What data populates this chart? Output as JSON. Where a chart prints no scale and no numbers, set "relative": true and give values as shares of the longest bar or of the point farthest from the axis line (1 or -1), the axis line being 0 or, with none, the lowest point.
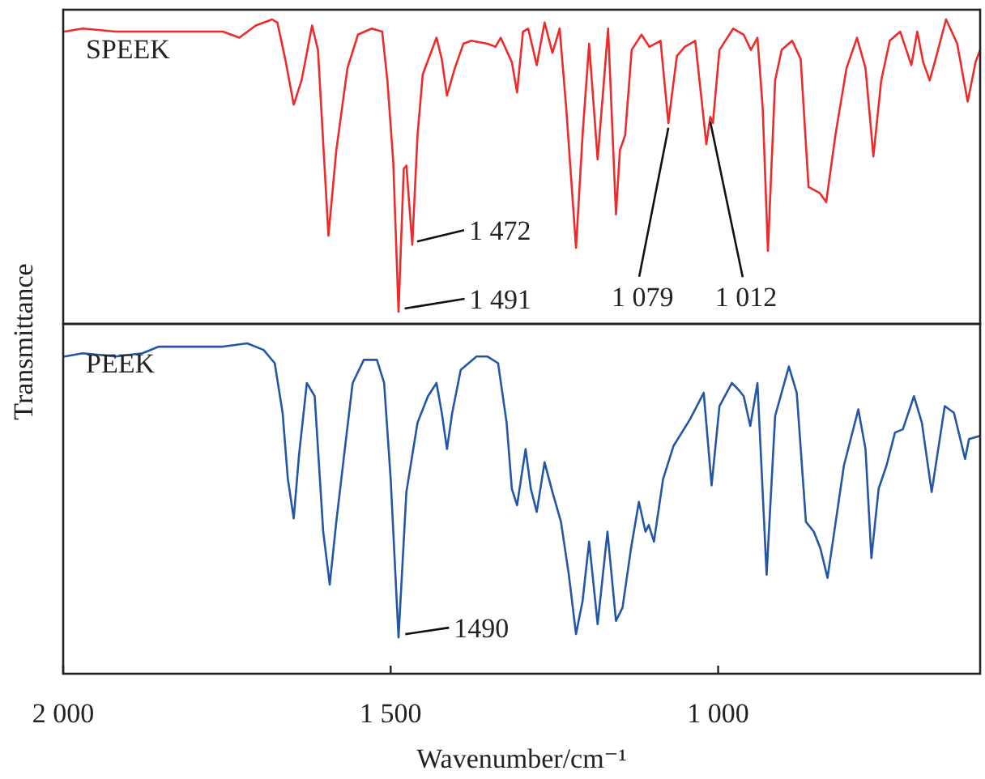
{
  "chart_data": [
    {
      "type": "line",
      "title": "SPEEK",
      "ylabel": "Transmittance",
      "relative": true,
      "xlim": [
        2000,
        600
      ],
      "tick_labels": false,
      "series": [
        {
          "color": "#ee2a2a",
          "x": [
            1998,
            1970,
            1920,
            1838,
            1756,
            1731,
            1706,
            1681,
            1673,
            1661,
            1648,
            1636,
            1620,
            1611,
            1595,
            1583,
            1566,
            1550,
            1529,
            1513,
            1505,
            1496,
            1488,
            1480,
            1476,
            1467,
            1459,
            1451,
            1430,
            1422,
            1414,
            1402,
            1389,
            1377,
            1352,
            1340,
            1332,
            1315,
            1307,
            1298,
            1290,
            1277,
            1265,
            1253,
            1242,
            1232,
            1217,
            1207,
            1197,
            1184,
            1168,
            1156,
            1150,
            1142,
            1132,
            1117,
            1105,
            1088,
            1076,
            1063,
            1051,
            1035,
            1026,
            1018,
            1012,
            1008,
            998,
            977,
            961,
            950,
            940,
            932,
            924,
            913,
            903,
            887,
            874,
            862,
            845,
            835,
            821,
            804,
            788,
            775,
            763,
            751,
            738,
            722,
            705,
            696,
            687,
            677,
            668,
            652,
            635,
            619,
            607,
            600
          ],
          "values": [
            0.96,
            0.97,
            0.96,
            0.96,
            0.96,
            0.94,
            0.98,
            1.0,
            0.99,
            0.87,
            0.72,
            0.8,
            0.98,
            0.9,
            0.29,
            0.57,
            0.84,
            0.95,
            0.97,
            0.96,
            0.8,
            0.53,
            0.04,
            0.51,
            0.52,
            0.26,
            0.62,
            0.82,
            0.94,
            0.87,
            0.75,
            0.84,
            0.92,
            0.93,
            0.92,
            0.91,
            0.94,
            0.86,
            0.76,
            0.96,
            0.97,
            0.85,
            0.99,
            0.89,
            0.97,
            0.71,
            0.25,
            0.62,
            0.92,
            0.54,
            0.97,
            0.36,
            0.57,
            0.62,
            0.9,
            0.95,
            0.91,
            0.93,
            0.66,
            0.88,
            0.91,
            0.93,
            0.75,
            0.59,
            0.68,
            0.66,
            0.9,
            0.97,
            0.95,
            0.9,
            0.94,
            0.71,
            0.24,
            0.8,
            0.9,
            0.93,
            0.87,
            0.45,
            0.43,
            0.4,
            0.62,
            0.84,
            0.94,
            0.84,
            0.55,
            0.8,
            0.93,
            0.96,
            0.85,
            0.96,
            0.86,
            0.8,
            0.87,
            1.0,
            0.92,
            0.73,
            0.86,
            0.9
          ]
        }
      ],
      "annotations": [
        {
          "text": "1 472",
          "x": 1472,
          "y": 0.26
        },
        {
          "text": "1 491",
          "x": 1491,
          "y": 0.04
        },
        {
          "text": "1 079",
          "x": 1076,
          "y": 0.66
        },
        {
          "text": "1 012",
          "x": 1012,
          "y": 0.68
        }
      ]
    },
    {
      "type": "line",
      "title": "PEEK",
      "xlabel": "Wavenumber/cm⁻¹",
      "relative": true,
      "xlim": [
        2000,
        600
      ],
      "tick_labels": "x",
      "xticks": [
        {
          "value": 2000,
          "label": "2 000"
        },
        {
          "value": 1500,
          "label": "1 500"
        },
        {
          "value": 1000,
          "label": "1 000"
        }
      ],
      "series": [
        {
          "color": "#2456a8",
          "x": [
            1998,
            1970,
            1920,
            1879,
            1854,
            1797,
            1756,
            1719,
            1694,
            1677,
            1665,
            1657,
            1648,
            1640,
            1628,
            1616,
            1603,
            1593,
            1583,
            1570,
            1558,
            1541,
            1521,
            1510,
            1500,
            1488,
            1476,
            1459,
            1443,
            1430,
            1422,
            1414,
            1406,
            1393,
            1369,
            1352,
            1336,
            1323,
            1315,
            1307,
            1294,
            1286,
            1277,
            1265,
            1253,
            1240,
            1228,
            1217,
            1207,
            1197,
            1184,
            1169,
            1156,
            1146,
            1133,
            1121,
            1111,
            1106,
            1098,
            1084,
            1068,
            1043,
            1022,
            1010,
            998,
            979,
            969,
            961,
            951,
            940,
            926,
            913,
            892,
            880,
            866,
            854,
            844,
            833,
            808,
            786,
            775,
            766,
            755,
            743,
            730,
            718,
            701,
            689,
            674,
            654,
            640,
            623,
            617,
            600
          ],
          "values": [
            0.96,
            0.97,
            0.96,
            0.97,
            0.99,
            0.99,
            0.99,
            1.0,
            0.98,
            0.94,
            0.79,
            0.59,
            0.47,
            0.66,
            0.88,
            0.84,
            0.43,
            0.27,
            0.46,
            0.68,
            0.88,
            0.95,
            0.95,
            0.88,
            0.59,
            0.11,
            0.55,
            0.76,
            0.84,
            0.88,
            0.79,
            0.68,
            0.79,
            0.92,
            0.96,
            0.96,
            0.94,
            0.76,
            0.56,
            0.51,
            0.68,
            0.56,
            0.49,
            0.64,
            0.55,
            0.46,
            0.3,
            0.12,
            0.22,
            0.4,
            0.15,
            0.43,
            0.16,
            0.2,
            0.38,
            0.52,
            0.43,
            0.45,
            0.4,
            0.59,
            0.69,
            0.77,
            0.85,
            0.57,
            0.81,
            0.88,
            0.86,
            0.84,
            0.75,
            0.88,
            0.3,
            0.78,
            0.93,
            0.85,
            0.46,
            0.43,
            0.38,
            0.29,
            0.63,
            0.8,
            0.68,
            0.35,
            0.56,
            0.63,
            0.73,
            0.74,
            0.84,
            0.76,
            0.55,
            0.81,
            0.79,
            0.65,
            0.71,
            0.72
          ]
        }
      ],
      "annotations": [
        {
          "text": "1490",
          "x": 1490,
          "y": 0.11
        }
      ]
    }
  ]
}
